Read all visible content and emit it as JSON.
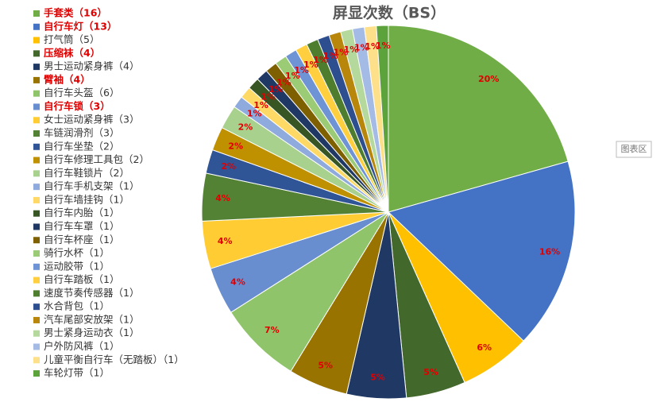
{
  "chart_data": {
    "type": "pie",
    "title": "屏显次数（BS）",
    "categories": [
      "手套类（16）",
      "自行车灯（13）",
      "打气筒（5）",
      "压缩袜（4）",
      "男士运动紧身裤（4）",
      "臂袖（4）",
      "自行车头盔（6）",
      "自行车锁（3）",
      "女士运动紧身裤（3）",
      "车链润滑剂（3）",
      "自行车坐垫（2）",
      "自行车修理工具包（2）",
      "自行车鞋锁片（2）",
      "自行车手机支架（1）",
      "自行车墙挂钩（1）",
      "自行车内胎（1）",
      "自行车车罩（1）",
      "自行车杯座（1）",
      "骑行水杯（1）",
      "运动胶带（1）",
      "自行车踏板（1）",
      "速度节奏传感器（1）",
      "水合背包（1）",
      "汽车尾部安放架（1）",
      "男士紧身运动衣（1）",
      "户外防风裤（1）",
      "儿童平衡自行车（无踏板）（1）",
      "车轮灯带（1）"
    ],
    "values": [
      20,
      16,
      6,
      5,
      5,
      5,
      7,
      4,
      4,
      4,
      2,
      2,
      2,
      1,
      1,
      1,
      1,
      1,
      1,
      1,
      1,
      1,
      1,
      1,
      1,
      1,
      1,
      1
    ],
    "value_labels": [
      "20%",
      "16%",
      "6%",
      "5%",
      "5%",
      "5%",
      "7%",
      "4%",
      "4%",
      "4%",
      "2%",
      "2%",
      "2%",
      "1%",
      "1%",
      "1%",
      "1%",
      "1%",
      "1%",
      "1%",
      "1%",
      "1%",
      "1%",
      "1%",
      "1%",
      "1%",
      "1%",
      "1%"
    ],
    "colors": [
      "#70AD47",
      "#4472C4",
      "#FFC000",
      "#43682B",
      "#203864",
      "#997300",
      "#8FC46A",
      "#698ED0",
      "#FFCD33",
      "#548235",
      "#2F5597",
      "#BF9000",
      "#A9D18E",
      "#8FAADC",
      "#FFD966",
      "#375623",
      "#1F3864",
      "#7F6000",
      "#9BCB75",
      "#6F94D6",
      "#FFCF40",
      "#4E7D2E",
      "#2E4F8F",
      "#B8860B",
      "#B5D99C",
      "#A4BBE6",
      "#FFE08A",
      "#5CA33C"
    ],
    "label_colors": [
      "#e00000",
      "#e00000",
      "#333333",
      "#e00000",
      "#333333",
      "#e00000",
      "#333333",
      "#e00000",
      "#333333",
      "#333333",
      "#333333",
      "#333333",
      "#333333",
      "#333333",
      "#333333",
      "#333333",
      "#333333",
      "#333333",
      "#333333",
      "#333333",
      "#333333",
      "#333333",
      "#333333",
      "#333333",
      "#333333",
      "#333333",
      "#333333",
      "#333333"
    ],
    "tooltip": "图表区"
  }
}
